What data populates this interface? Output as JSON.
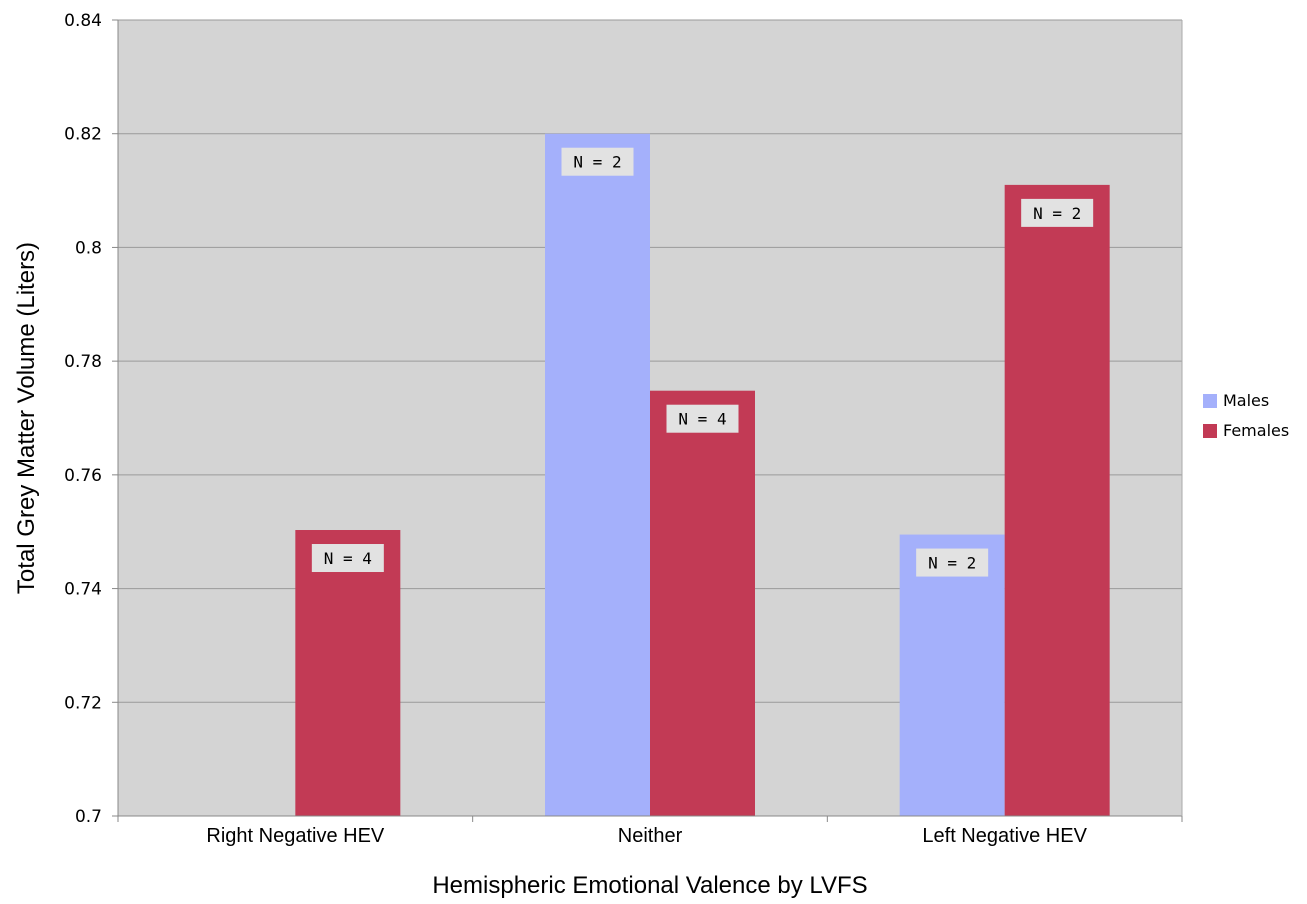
{
  "chart_data": {
    "type": "bar",
    "title": "",
    "xlabel": "Hemispheric Emotional Valence by LVFS",
    "ylabel": "Total Grey Matter Volume (Liters)",
    "ylim": [
      0.7,
      0.84
    ],
    "yticks": [
      "0.7",
      "0.72",
      "0.74",
      "0.76",
      "0.78",
      "0.8",
      "0.82",
      "0.84"
    ],
    "categories": [
      "Right Negative HEV",
      "Neither",
      "Left Negative HEV"
    ],
    "grid": true,
    "legend_position": "right",
    "series": [
      {
        "name": "Males",
        "color": "#a4b0fb",
        "values": [
          null,
          0.82,
          0.7495
        ],
        "labels": [
          "",
          "N = 2",
          "N = 2"
        ]
      },
      {
        "name": "Females",
        "color": "#c23a55",
        "values": [
          0.7503,
          0.7748,
          0.811
        ],
        "labels": [
          "N = 4",
          "N = 4",
          "N = 2"
        ]
      }
    ],
    "plot_background": "#d4d4d4"
  }
}
